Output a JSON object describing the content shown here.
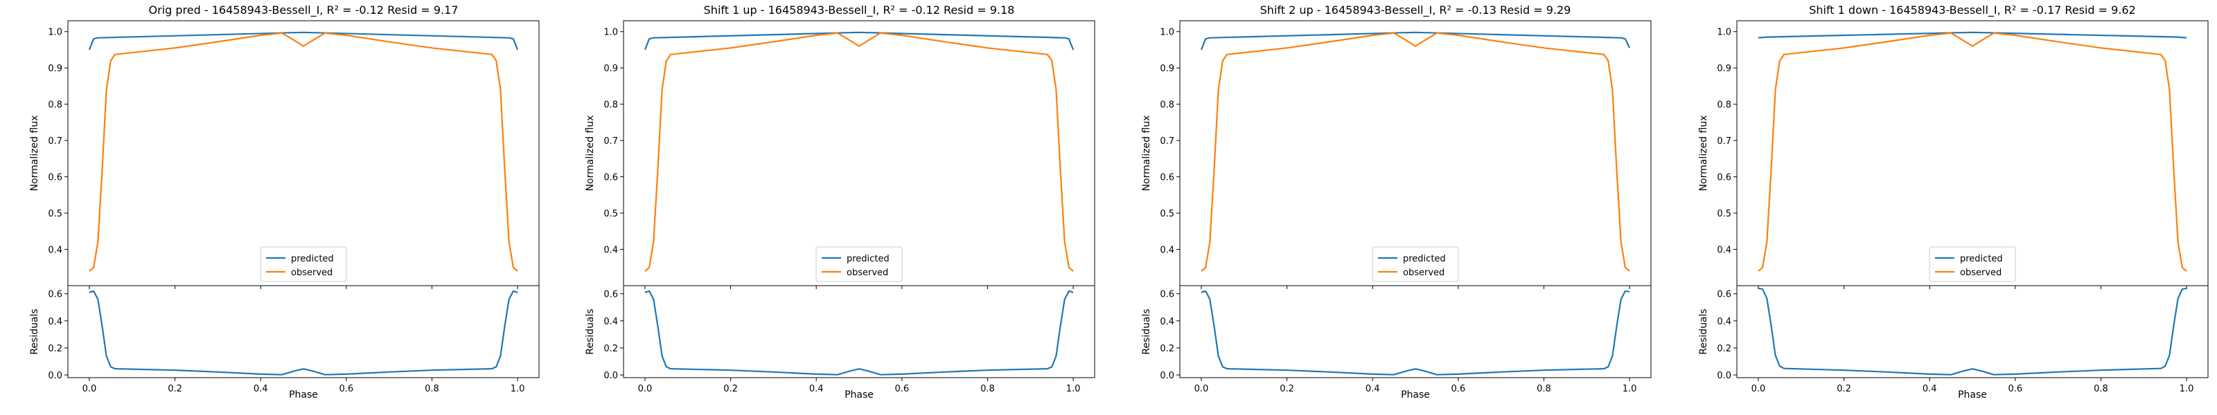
{
  "colors": {
    "predicted": "#1f77b4",
    "observed": "#ff7f0e",
    "axis": "#000000",
    "background": "#ffffff"
  },
  "chart_data": [
    {
      "type": "line",
      "title": "Orig pred - 16458943-Bessell_I, R² = -0.12 Resid = 9.17",
      "main_ylabel": "Normalized flux",
      "resid_ylabel": "Residuals",
      "xlabel": "Phase",
      "xlim": [
        -0.05,
        1.05
      ],
      "main_ylim": [
        0.3,
        1.03
      ],
      "resid_ylim": [
        -0.02,
        0.66
      ],
      "x_ticks": [
        "0.0",
        "0.2",
        "0.4",
        "0.6",
        "0.8",
        "1.0"
      ],
      "main_y_ticks": [
        "0.4",
        "0.5",
        "0.6",
        "0.7",
        "0.8",
        "0.9",
        "1.0"
      ],
      "resid_y_ticks": [
        "0.0",
        "0.2",
        "0.4",
        "0.6"
      ],
      "legend": {
        "position": "lower center",
        "entries": [
          "predicted",
          "observed"
        ]
      },
      "series": [
        {
          "name": "predicted",
          "x": [
            0.0,
            0.01,
            0.02,
            0.5,
            0.98,
            0.99,
            1.0
          ],
          "y": [
            0.95,
            0.98,
            0.983,
            0.998,
            0.983,
            0.98,
            0.95
          ]
        },
        {
          "name": "observed",
          "x": [
            0.0,
            0.01,
            0.02,
            0.03,
            0.04,
            0.05,
            0.06,
            0.2,
            0.3,
            0.4,
            0.45,
            0.48,
            0.5,
            0.52,
            0.55,
            0.6,
            0.7,
            0.8,
            0.94,
            0.95,
            0.96,
            0.97,
            0.98,
            0.99,
            1.0
          ],
          "y": [
            0.34,
            0.35,
            0.42,
            0.62,
            0.84,
            0.92,
            0.937,
            0.955,
            0.972,
            0.99,
            0.996,
            0.975,
            0.96,
            0.975,
            0.996,
            0.99,
            0.972,
            0.955,
            0.937,
            0.92,
            0.84,
            0.62,
            0.42,
            0.35,
            0.34
          ]
        },
        {
          "name": "residuals",
          "x": [
            0.0,
            0.01,
            0.02,
            0.03,
            0.04,
            0.05,
            0.06,
            0.2,
            0.3,
            0.4,
            0.45,
            0.48,
            0.5,
            0.52,
            0.55,
            0.6,
            0.7,
            0.8,
            0.94,
            0.95,
            0.96,
            0.97,
            0.98,
            0.99,
            1.0
          ],
          "y": [
            0.61,
            0.62,
            0.56,
            0.36,
            0.14,
            0.06,
            0.046,
            0.035,
            0.022,
            0.006,
            0.002,
            0.03,
            0.045,
            0.03,
            0.002,
            0.006,
            0.022,
            0.035,
            0.046,
            0.06,
            0.14,
            0.36,
            0.56,
            0.62,
            0.61
          ]
        }
      ]
    },
    {
      "type": "line",
      "title": "Shift 1 up - 16458943-Bessell_I, R² = -0.12 Resid = 9.18",
      "main_ylabel": "Normalized flux",
      "resid_ylabel": "Residuals",
      "xlabel": "Phase",
      "xlim": [
        -0.05,
        1.05
      ],
      "main_ylim": [
        0.3,
        1.03
      ],
      "resid_ylim": [
        -0.02,
        0.66
      ],
      "x_ticks": [
        "0.0",
        "0.2",
        "0.4",
        "0.6",
        "0.8",
        "1.0"
      ],
      "main_y_ticks": [
        "0.4",
        "0.5",
        "0.6",
        "0.7",
        "0.8",
        "0.9",
        "1.0"
      ],
      "resid_y_ticks": [
        "0.0",
        "0.2",
        "0.4",
        "0.6"
      ],
      "legend": {
        "position": "lower center",
        "entries": [
          "predicted",
          "observed"
        ]
      },
      "series": [
        {
          "name": "predicted",
          "x": [
            0.0,
            0.01,
            0.02,
            0.5,
            0.98,
            0.99,
            1.0
          ],
          "y": [
            0.95,
            0.98,
            0.983,
            0.998,
            0.983,
            0.98,
            0.95
          ]
        },
        {
          "name": "observed",
          "x": [
            0.0,
            0.01,
            0.02,
            0.03,
            0.04,
            0.05,
            0.06,
            0.2,
            0.3,
            0.4,
            0.45,
            0.48,
            0.5,
            0.52,
            0.55,
            0.6,
            0.7,
            0.8,
            0.94,
            0.95,
            0.96,
            0.97,
            0.98,
            0.99,
            1.0
          ],
          "y": [
            0.34,
            0.35,
            0.42,
            0.62,
            0.84,
            0.92,
            0.937,
            0.955,
            0.972,
            0.99,
            0.996,
            0.975,
            0.96,
            0.975,
            0.996,
            0.99,
            0.972,
            0.955,
            0.937,
            0.92,
            0.84,
            0.62,
            0.42,
            0.35,
            0.34
          ]
        },
        {
          "name": "residuals",
          "x": [
            0.0,
            0.01,
            0.02,
            0.03,
            0.04,
            0.05,
            0.06,
            0.2,
            0.3,
            0.4,
            0.45,
            0.48,
            0.5,
            0.52,
            0.55,
            0.6,
            0.7,
            0.8,
            0.94,
            0.95,
            0.96,
            0.97,
            0.98,
            0.99,
            1.0
          ],
          "y": [
            0.61,
            0.62,
            0.56,
            0.36,
            0.14,
            0.06,
            0.046,
            0.035,
            0.022,
            0.006,
            0.002,
            0.03,
            0.045,
            0.03,
            0.002,
            0.006,
            0.022,
            0.035,
            0.046,
            0.06,
            0.14,
            0.36,
            0.56,
            0.62,
            0.61
          ]
        }
      ]
    },
    {
      "type": "line",
      "title": "Shift 2 up - 16458943-Bessell_I, R² = -0.13 Resid = 9.29",
      "main_ylabel": "Normalized flux",
      "resid_ylabel": "Residuals",
      "xlabel": "Phase",
      "xlim": [
        -0.05,
        1.05
      ],
      "main_ylim": [
        0.3,
        1.03
      ],
      "resid_ylim": [
        -0.02,
        0.66
      ],
      "x_ticks": [
        "0.0",
        "0.2",
        "0.4",
        "0.6",
        "0.8",
        "1.0"
      ],
      "main_y_ticks": [
        "0.4",
        "0.5",
        "0.6",
        "0.7",
        "0.8",
        "0.9",
        "1.0"
      ],
      "resid_y_ticks": [
        "0.0",
        "0.2",
        "0.4",
        "0.6"
      ],
      "legend": {
        "position": "lower center",
        "entries": [
          "predicted",
          "observed"
        ]
      },
      "series": [
        {
          "name": "predicted",
          "x": [
            0.0,
            0.01,
            0.02,
            0.5,
            0.98,
            0.99,
            1.0
          ],
          "y": [
            0.95,
            0.98,
            0.983,
            0.998,
            0.983,
            0.98,
            0.955
          ]
        },
        {
          "name": "observed",
          "x": [
            0.0,
            0.01,
            0.02,
            0.03,
            0.04,
            0.05,
            0.06,
            0.2,
            0.3,
            0.4,
            0.45,
            0.48,
            0.5,
            0.52,
            0.55,
            0.6,
            0.7,
            0.8,
            0.94,
            0.95,
            0.96,
            0.97,
            0.98,
            0.99,
            1.0
          ],
          "y": [
            0.34,
            0.35,
            0.42,
            0.62,
            0.84,
            0.92,
            0.937,
            0.955,
            0.972,
            0.99,
            0.996,
            0.975,
            0.96,
            0.975,
            0.996,
            0.99,
            0.972,
            0.955,
            0.937,
            0.92,
            0.84,
            0.62,
            0.42,
            0.35,
            0.34
          ]
        },
        {
          "name": "residuals",
          "x": [
            0.0,
            0.01,
            0.02,
            0.03,
            0.04,
            0.05,
            0.06,
            0.2,
            0.3,
            0.4,
            0.45,
            0.48,
            0.5,
            0.52,
            0.55,
            0.6,
            0.7,
            0.8,
            0.94,
            0.95,
            0.96,
            0.97,
            0.98,
            0.99,
            1.0
          ],
          "y": [
            0.61,
            0.62,
            0.56,
            0.36,
            0.14,
            0.06,
            0.046,
            0.035,
            0.022,
            0.006,
            0.002,
            0.03,
            0.045,
            0.03,
            0.002,
            0.006,
            0.022,
            0.035,
            0.046,
            0.06,
            0.14,
            0.36,
            0.56,
            0.62,
            0.615
          ]
        }
      ]
    },
    {
      "type": "line",
      "title": "Shift 1 down - 16458943-Bessell_I, R² = -0.17 Resid = 9.62",
      "main_ylabel": "Normalized flux",
      "resid_ylabel": "Residuals",
      "xlabel": "Phase",
      "xlim": [
        -0.05,
        1.05
      ],
      "main_ylim": [
        0.3,
        1.03
      ],
      "resid_ylim": [
        -0.02,
        0.66
      ],
      "x_ticks": [
        "0.0",
        "0.2",
        "0.4",
        "0.6",
        "0.8",
        "1.0"
      ],
      "main_y_ticks": [
        "0.4",
        "0.5",
        "0.6",
        "0.7",
        "0.8",
        "0.9",
        "1.0"
      ],
      "resid_y_ticks": [
        "0.0",
        "0.2",
        "0.4",
        "0.6"
      ],
      "legend": {
        "position": "lower center",
        "entries": [
          "predicted",
          "observed"
        ]
      },
      "series": [
        {
          "name": "predicted",
          "x": [
            0.0,
            0.01,
            0.02,
            0.5,
            0.98,
            0.99,
            1.0
          ],
          "y": [
            0.983,
            0.984,
            0.985,
            0.998,
            0.985,
            0.984,
            0.983
          ]
        },
        {
          "name": "observed",
          "x": [
            0.0,
            0.01,
            0.02,
            0.03,
            0.04,
            0.05,
            0.06,
            0.2,
            0.3,
            0.4,
            0.45,
            0.48,
            0.5,
            0.52,
            0.55,
            0.6,
            0.7,
            0.8,
            0.94,
            0.95,
            0.96,
            0.97,
            0.98,
            0.99,
            1.0
          ],
          "y": [
            0.34,
            0.35,
            0.42,
            0.62,
            0.84,
            0.92,
            0.937,
            0.955,
            0.972,
            0.99,
            0.996,
            0.975,
            0.96,
            0.975,
            0.996,
            0.99,
            0.972,
            0.955,
            0.937,
            0.92,
            0.84,
            0.62,
            0.42,
            0.35,
            0.34
          ]
        },
        {
          "name": "residuals",
          "x": [
            0.0,
            0.01,
            0.02,
            0.03,
            0.04,
            0.05,
            0.06,
            0.2,
            0.3,
            0.4,
            0.45,
            0.48,
            0.5,
            0.52,
            0.55,
            0.6,
            0.7,
            0.8,
            0.94,
            0.95,
            0.96,
            0.97,
            0.98,
            0.99,
            1.0
          ],
          "y": [
            0.64,
            0.635,
            0.565,
            0.365,
            0.145,
            0.065,
            0.048,
            0.035,
            0.022,
            0.006,
            0.002,
            0.03,
            0.045,
            0.03,
            0.002,
            0.006,
            0.022,
            0.035,
            0.048,
            0.065,
            0.145,
            0.365,
            0.565,
            0.635,
            0.64
          ]
        }
      ]
    }
  ]
}
